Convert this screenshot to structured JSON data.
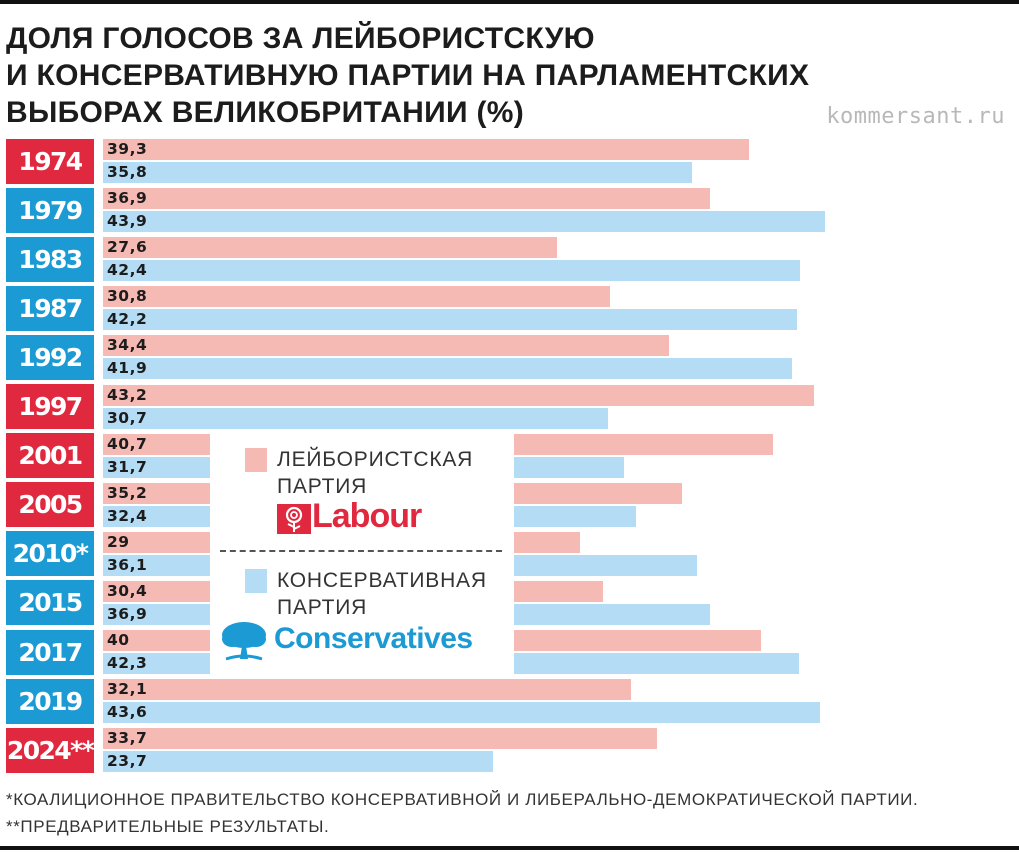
{
  "title_lines": [
    "ДОЛЯ ГОЛОСОВ ЗА ЛЕЙБОРИСТСКУЮ",
    "И КОНСЕРВАТИВНУЮ ПАРТИИ НА ПАРЛАМЕНТСКИХ",
    "ВЫБОРАХ ВЕЛИКОБРИТАНИИ (%)"
  ],
  "source": "kommersant.ru",
  "legend": {
    "labour_label_lines": [
      "ЛЕЙБОРИСТСКАЯ",
      "ПАРТИЯ"
    ],
    "labour_logo_text": "Labour",
    "conservative_label_lines": [
      "КОНСЕРВАТИВНАЯ",
      "ПАРТИЯ"
    ],
    "conservative_logo_text": "Conservatives"
  },
  "footnotes": [
    "*КОАЛИЦИОННОЕ ПРАВИТЕЛЬСТВО КОНСЕРВАТИВНОЙ И ЛИБЕРАЛЬНО-ДЕМОКРАТИЧЕСКОЙ ПАРТИИ.",
    "**ПРЕДВАРИТЕЛЬНЫЕ РЕЗУЛЬТАТЫ."
  ],
  "colors": {
    "labour_bar": "#f6bab4",
    "conservative_bar": "#b4dcf4",
    "labour_year": "#e0283f",
    "conservative_year": "#1b9ad4",
    "labour_logo": "#e0283f",
    "conservative_logo": "#1b9ad4"
  },
  "chart_data": {
    "type": "bar",
    "orientation": "horizontal",
    "title": "ДОЛЯ ГОЛОСОВ ЗА ЛЕЙБОРИСТСКУЮ И КОНСЕРВАТИВНУЮ ПАРТИИ НА ПАРЛАМЕНТСКИХ ВЫБОРАХ ВЕЛИКОБРИТАНИИ (%)",
    "categories": [
      "1974",
      "1979",
      "1983",
      "1987",
      "1992",
      "1997",
      "2001",
      "2005",
      "2010*",
      "2015",
      "2017",
      "2019",
      "2024**"
    ],
    "winner": [
      "labour",
      "conservative",
      "conservative",
      "conservative",
      "conservative",
      "labour",
      "labour",
      "labour",
      "conservative",
      "conservative",
      "conservative",
      "conservative",
      "labour"
    ],
    "series": [
      {
        "name": "ЛЕЙБОРИСТСКАЯ ПАРТИЯ",
        "key": "labour",
        "values": [
          39.3,
          36.9,
          27.6,
          30.8,
          34.4,
          43.2,
          40.7,
          35.2,
          29,
          30.4,
          40,
          32.1,
          33.7
        ],
        "labels": [
          "39,3",
          "36,9",
          "27,6",
          "30,8",
          "34,4",
          "43,2",
          "40,7",
          "35,2",
          "29",
          "30,4",
          "40",
          "32,1",
          "33,7"
        ]
      },
      {
        "name": "КОНСЕРВАТИВНАЯ ПАРТИЯ",
        "key": "conservative",
        "values": [
          35.8,
          43.9,
          42.4,
          42.2,
          41.9,
          30.7,
          31.7,
          32.4,
          36.1,
          36.9,
          42.3,
          43.6,
          23.7
        ],
        "labels": [
          "35,8",
          "43,9",
          "42,4",
          "42,2",
          "41,9",
          "30,7",
          "31,7",
          "32,4",
          "36,1",
          "36,9",
          "42,3",
          "43,6",
          "23,7"
        ]
      }
    ],
    "xlim": [
      0,
      45
    ],
    "legend_position": "center"
  }
}
